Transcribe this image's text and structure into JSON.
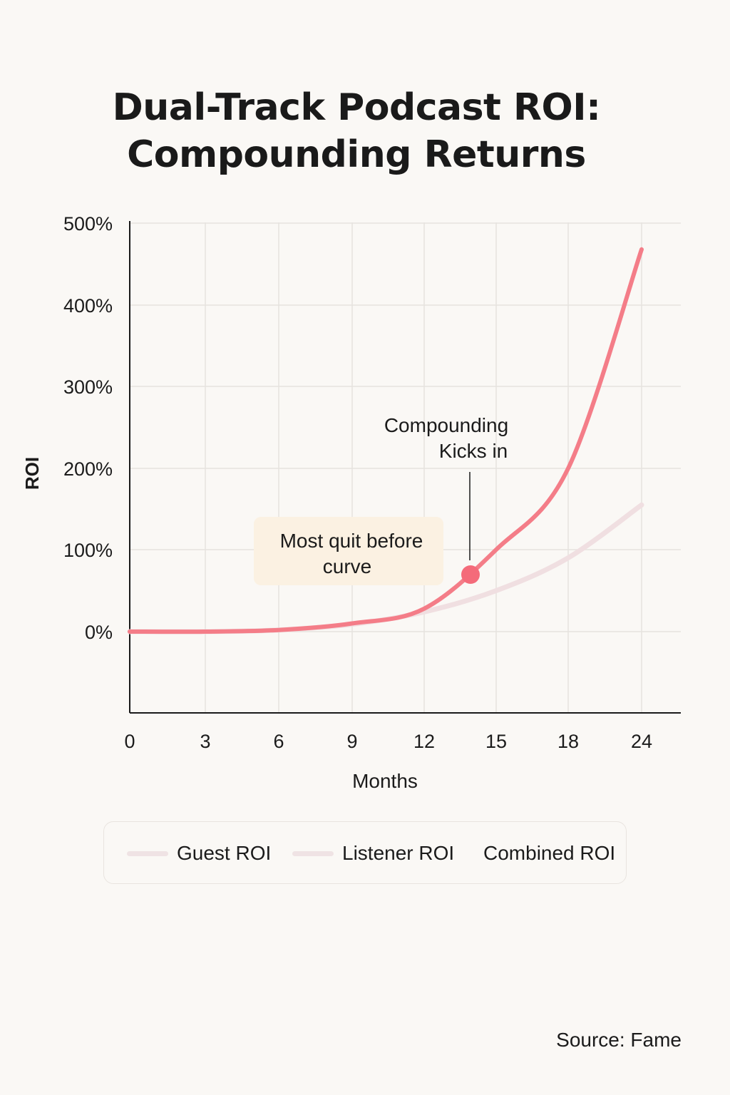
{
  "title_line1": "Dual-Track Podcast ROI:",
  "title_line2": "Compounding Returns",
  "source": "Source: Fame",
  "colors": {
    "combined": "#f47d88",
    "listener": "#f0dfe1",
    "guest": "#f2e6e7",
    "highlight_dot": "#f46b7a",
    "callout_bg": "#fbf1e2",
    "grid": "#e6e3df",
    "axis": "#1a1a1a"
  },
  "legend": {
    "items": [
      {
        "label": "Guest ROI",
        "color": "#efe3e4"
      },
      {
        "label": "Listener ROI",
        "color": "#efe3e4"
      },
      {
        "label": "Combined ROI",
        "color": ""
      }
    ]
  },
  "chart_data": {
    "type": "line",
    "title": "Dual-Track Podcast ROI: Compounding Returns",
    "xlabel": "Months",
    "ylabel": "ROI",
    "x_ticks": [
      "0",
      "3",
      "6",
      "9",
      "12",
      "15",
      "18",
      "24"
    ],
    "y_ticks": [
      "500%",
      "400%",
      "300%",
      "200%",
      "100%",
      "0%"
    ],
    "y_tick_values": [
      500,
      400,
      300,
      200,
      100,
      0
    ],
    "ylim": [
      -100,
      500
    ],
    "grid": true,
    "x": [
      0,
      3,
      6,
      9,
      12,
      15,
      18,
      24
    ],
    "series": [
      {
        "name": "Combined ROI",
        "values": [
          0,
          0,
          2,
          10,
          28,
          100,
          200,
          468
        ]
      },
      {
        "name": "Listener ROI",
        "values": [
          0,
          0,
          2,
          9,
          24,
          50,
          90,
          155
        ]
      }
    ],
    "annotations": [
      {
        "label": "Compounding Kicks in",
        "lines": [
          "Compounding",
          "Kicks in"
        ],
        "x_tick_index": 4.65,
        "y": 68
      },
      {
        "label": "Most quit before curve",
        "lines": [
          "Most quit before",
          "curve"
        ],
        "x_tick_index": 3.1,
        "y": 100
      }
    ]
  }
}
